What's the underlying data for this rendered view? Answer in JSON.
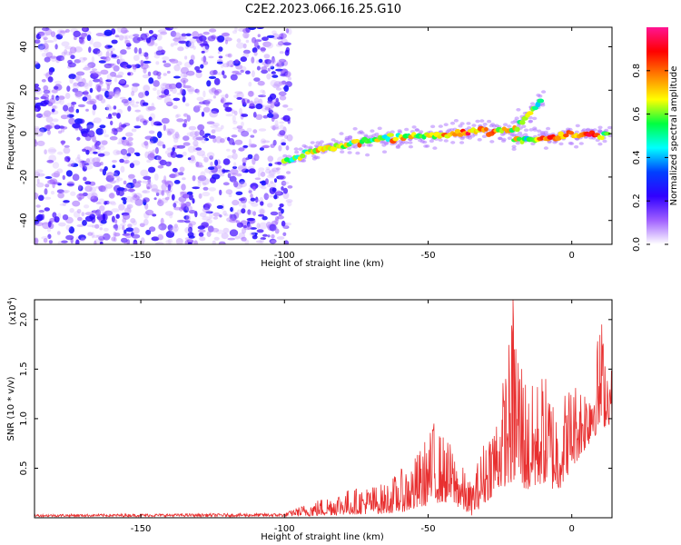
{
  "title": "C2E2.2023.066.16.25.G10",
  "chart_data": [
    {
      "type": "heatmap",
      "xlabel": "Height of straight line (km)",
      "ylabel": "Frequency (Hz)",
      "xlim": [
        -187,
        14
      ],
      "ylim": [
        -51,
        49
      ],
      "x_ticks": [
        -150,
        -100,
        -50,
        0
      ],
      "x_tick_labels": [
        "-150",
        "-100",
        "-50",
        "0"
      ],
      "y_ticks": [
        -40,
        -20,
        0,
        20,
        40
      ],
      "y_tick_labels": [
        "-40",
        "-20",
        "0",
        "20",
        "40"
      ],
      "colorbar": {
        "label": "Normalized spectral amplitude",
        "ticks": [
          0.0,
          0.2,
          0.4,
          0.6,
          0.8
        ],
        "tick_labels": [
          "0.0",
          "0.2",
          "0.4",
          "0.6",
          "0.8"
        ],
        "range": [
          0,
          1
        ],
        "colors": [
          "#ffffff",
          "#a060ff",
          "#3000ff",
          "#0040ff",
          "#00ffff",
          "#00ff40",
          "#ffff00",
          "#ff8000",
          "#ff0000",
          "#ff1493"
        ]
      },
      "noise_region": {
        "x_range": [
          -187,
          -98
        ],
        "y_range": [
          -51,
          49
        ],
        "amplitude_range": [
          0.0,
          0.25
        ]
      },
      "ridge": [
        {
          "x": -100,
          "y": -13,
          "amp": 0.35
        },
        {
          "x": -90,
          "y": -8,
          "amp": 0.5
        },
        {
          "x": -80,
          "y": -5,
          "amp": 0.55
        },
        {
          "x": -70,
          "y": -3,
          "amp": 0.5
        },
        {
          "x": -60,
          "y": -2,
          "amp": 0.55
        },
        {
          "x": -50,
          "y": -1,
          "amp": 0.6
        },
        {
          "x": -40,
          "y": 0,
          "amp": 0.7
        },
        {
          "x": -30,
          "y": 1,
          "amp": 0.8
        },
        {
          "x": -20,
          "y": 2,
          "amp": 0.6
        },
        {
          "x": -10,
          "y": 16,
          "amp": 0.3
        },
        {
          "x": -20,
          "y": -3,
          "amp": 0.5
        },
        {
          "x": -10,
          "y": -2,
          "amp": 0.7
        },
        {
          "x": 0,
          "y": -1,
          "amp": 0.8
        },
        {
          "x": 5,
          "y": 0,
          "amp": 0.95
        },
        {
          "x": 13,
          "y": -1,
          "amp": 0.5
        }
      ]
    },
    {
      "type": "line",
      "xlabel": "Height of straight line (km)",
      "ylabel": "SNR (10 * v/v)",
      "y_exponent_label": "(x10",
      "y_exponent_power": "4",
      "y_exponent_close": ")",
      "xlim": [
        -187,
        14
      ],
      "ylim": [
        0,
        22000
      ],
      "x_ticks": [
        -150,
        -100,
        -50,
        0
      ],
      "x_tick_labels": [
        "-150",
        "-100",
        "-50",
        "0"
      ],
      "y_ticks": [
        5000,
        10000,
        15000,
        20000
      ],
      "y_tick_labels": [
        "0.5",
        "1.0",
        "1.5",
        "2.0"
      ],
      "color": "#e83030",
      "envelope": [
        {
          "x": -187,
          "low": 100,
          "high": 350
        },
        {
          "x": -100,
          "low": 100,
          "high": 450
        },
        {
          "x": -92,
          "low": 150,
          "high": 1500
        },
        {
          "x": -80,
          "low": 300,
          "high": 2800
        },
        {
          "x": -65,
          "low": 400,
          "high": 3500
        },
        {
          "x": -55,
          "low": 700,
          "high": 6000
        },
        {
          "x": -48,
          "low": 1500,
          "high": 9500
        },
        {
          "x": -42,
          "low": 1500,
          "high": 7500
        },
        {
          "x": -35,
          "low": 200,
          "high": 3500
        },
        {
          "x": -30,
          "low": 1500,
          "high": 8500
        },
        {
          "x": -25,
          "low": 3000,
          "high": 12000
        },
        {
          "x": -20,
          "low": 3500,
          "high": 22000
        },
        {
          "x": -15,
          "low": 2500,
          "high": 13000
        },
        {
          "x": -10,
          "low": 3500,
          "high": 15000
        },
        {
          "x": -5,
          "low": 2500,
          "high": 12000
        },
        {
          "x": 0,
          "low": 5000,
          "high": 14000
        },
        {
          "x": 5,
          "low": 7000,
          "high": 14000
        },
        {
          "x": 10,
          "low": 9000,
          "high": 19500
        },
        {
          "x": 14,
          "low": 9500,
          "high": 15000
        }
      ],
      "peaks": [
        {
          "x": -48,
          "y": 9500
        },
        {
          "x": -20.5,
          "y": 22000
        },
        {
          "x": 10.5,
          "y": 19500
        }
      ]
    }
  ]
}
